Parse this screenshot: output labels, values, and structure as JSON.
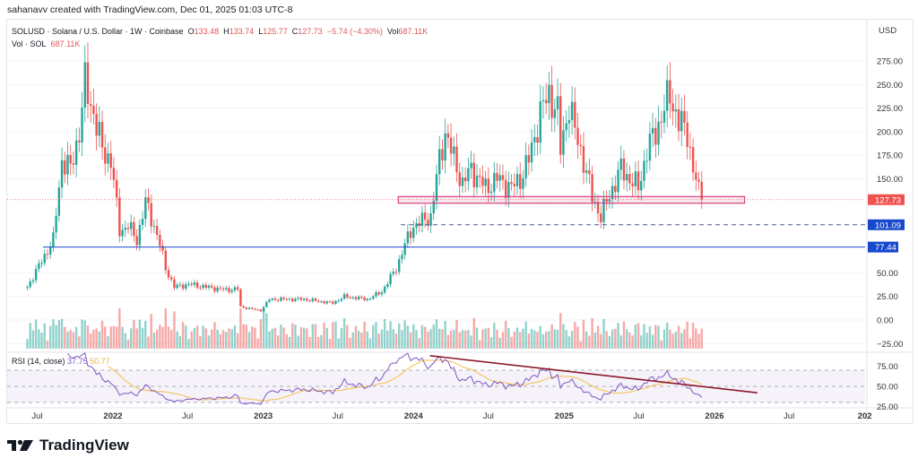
{
  "attribution": "sahanavv created with TradingView.com, Dec 01, 2025 01:03 UTC-8",
  "legend": {
    "symbol": "SOLUSD · Solana / U.S. Dollar · 1W · Coinbase",
    "o_label": "O",
    "o": "133.48",
    "h_label": "H",
    "h": "133.74",
    "l_label": "L",
    "l": "125.77",
    "c_label": "C",
    "c": "127.73",
    "change": "−5.74 (−4.30%)",
    "vol_label": "Vol",
    "vol": "687.11K",
    "vol_line_label": "Vol · SOL",
    "vol_line_value": "687.11K"
  },
  "rsi_legend": {
    "label": "RSI (14, close)",
    "rsi": "37.75",
    "ma": "50.77"
  },
  "logo_text": "TradingView",
  "colors": {
    "up": "#26a69a",
    "down": "#ef5350",
    "rsi": "#7e57c2",
    "rsi_ma": "#f5c04a",
    "level": "#1848cc",
    "price_tag": "#ef5350",
    "zone": "#d6407f",
    "trendline": "#8b1a2b"
  },
  "chart_data": {
    "type": "candlestick",
    "currency": "USD",
    "timeframe": "1W",
    "price_ticks": [
      "275.00",
      "250.00",
      "225.00",
      "200.00",
      "175.00",
      "150.00",
      "50.00",
      "25.00",
      "0.00",
      "−25.00"
    ],
    "rsi_ticks": [
      "75.00",
      "50.00",
      "25.00"
    ],
    "time_ticks": [
      {
        "label": "Jul",
        "date": "2021-07-01",
        "bold": false
      },
      {
        "label": "2022",
        "date": "2022-01-01",
        "bold": true
      },
      {
        "label": "Jul",
        "date": "2022-07-01",
        "bold": false
      },
      {
        "label": "2023",
        "date": "2023-01-01",
        "bold": true
      },
      {
        "label": "Jul",
        "date": "2023-07-01",
        "bold": false
      },
      {
        "label": "2024",
        "date": "2024-01-01",
        "bold": true
      },
      {
        "label": "Jul",
        "date": "2024-07-01",
        "bold": false
      },
      {
        "label": "2025",
        "date": "2025-01-01",
        "bold": true
      },
      {
        "label": "Jul",
        "date": "2025-07-01",
        "bold": false
      },
      {
        "label": "2026",
        "date": "2026-01-01",
        "bold": true
      },
      {
        "label": "Jul",
        "date": "2026-07-01",
        "bold": false
      },
      {
        "label": "202",
        "date": "2027-01-01",
        "bold": true
      }
    ],
    "approx_closes": [
      [
        "2021-06-07",
        35
      ],
      [
        "2021-08-09",
        85
      ],
      [
        "2021-08-30",
        170
      ],
      [
        "2021-09-20",
        160
      ],
      [
        "2021-10-11",
        200
      ],
      [
        "2021-10-25",
        250
      ],
      [
        "2021-11-15",
        220
      ],
      [
        "2021-12-06",
        180
      ],
      [
        "2021-12-27",
        170
      ],
      [
        "2022-01-10",
        120
      ],
      [
        "2022-01-17",
        95
      ],
      [
        "2022-02-07",
        100
      ],
      [
        "2022-02-28",
        85
      ],
      [
        "2022-03-21",
        125
      ],
      [
        "2022-04-11",
        100
      ],
      [
        "2022-04-25",
        80
      ],
      [
        "2022-05-09",
        55
      ],
      [
        "2022-05-30",
        35
      ],
      [
        "2022-07-04",
        38
      ],
      [
        "2022-08-15",
        35
      ],
      [
        "2022-10-03",
        32
      ],
      [
        "2022-10-31",
        33
      ],
      [
        "2022-11-07",
        14
      ],
      [
        "2022-12-26",
        10
      ],
      [
        "2023-01-16",
        22
      ],
      [
        "2023-04-10",
        22
      ],
      [
        "2023-06-19",
        18
      ],
      [
        "2023-07-17",
        25
      ],
      [
        "2023-09-11",
        22
      ],
      [
        "2023-10-16",
        30
      ],
      [
        "2023-11-20",
        55
      ],
      [
        "2023-12-11",
        80
      ],
      [
        "2024-01-01",
        100
      ],
      [
        "2024-01-22",
        105
      ],
      [
        "2024-02-12",
        110
      ],
      [
        "2024-03-04",
        170
      ],
      [
        "2024-03-18",
        200
      ],
      [
        "2024-04-08",
        170
      ],
      [
        "2024-04-29",
        145
      ],
      [
        "2024-05-20",
        160
      ],
      [
        "2024-06-24",
        140
      ],
      [
        "2024-07-22",
        150
      ],
      [
        "2024-08-26",
        140
      ],
      [
        "2024-09-16",
        150
      ],
      [
        "2024-10-07",
        170
      ],
      [
        "2024-11-04",
        220
      ],
      [
        "2024-11-25",
        240
      ],
      [
        "2024-12-16",
        220
      ],
      [
        "2024-12-23",
        180
      ],
      [
        "2025-01-13",
        230
      ],
      [
        "2025-01-27",
        200
      ],
      [
        "2025-02-17",
        170
      ],
      [
        "2025-03-10",
        130
      ],
      [
        "2025-03-31",
        110
      ],
      [
        "2025-04-28",
        140
      ],
      [
        "2025-05-19",
        160
      ],
      [
        "2025-06-09",
        150
      ],
      [
        "2025-06-30",
        140
      ],
      [
        "2025-07-21",
        180
      ],
      [
        "2025-08-11",
        200
      ],
      [
        "2025-09-15",
        240
      ],
      [
        "2025-10-06",
        210
      ],
      [
        "2025-10-27",
        200
      ],
      [
        "2025-11-10",
        160
      ],
      [
        "2025-11-24",
        135
      ],
      [
        "2025-12-01",
        127.73
      ]
    ],
    "last_price": "127.73",
    "levels": [
      {
        "value": 101.09,
        "label": "101.09",
        "style": "dashed",
        "from": "2023-12-01"
      },
      {
        "value": 77.44,
        "label": "77.44",
        "style": "solid",
        "from": "2021-07-15"
      }
    ],
    "support_zone": {
      "low": 124,
      "high": 131,
      "from": "2023-11-25",
      "to": "2026-03-15"
    },
    "rsi_trendline": {
      "from": [
        "2024-02-10",
        88
      ],
      "to": [
        "2026-04-15",
        42
      ]
    },
    "rsi_period": 14,
    "rsi_bands": [
      70,
      50,
      30
    ]
  }
}
